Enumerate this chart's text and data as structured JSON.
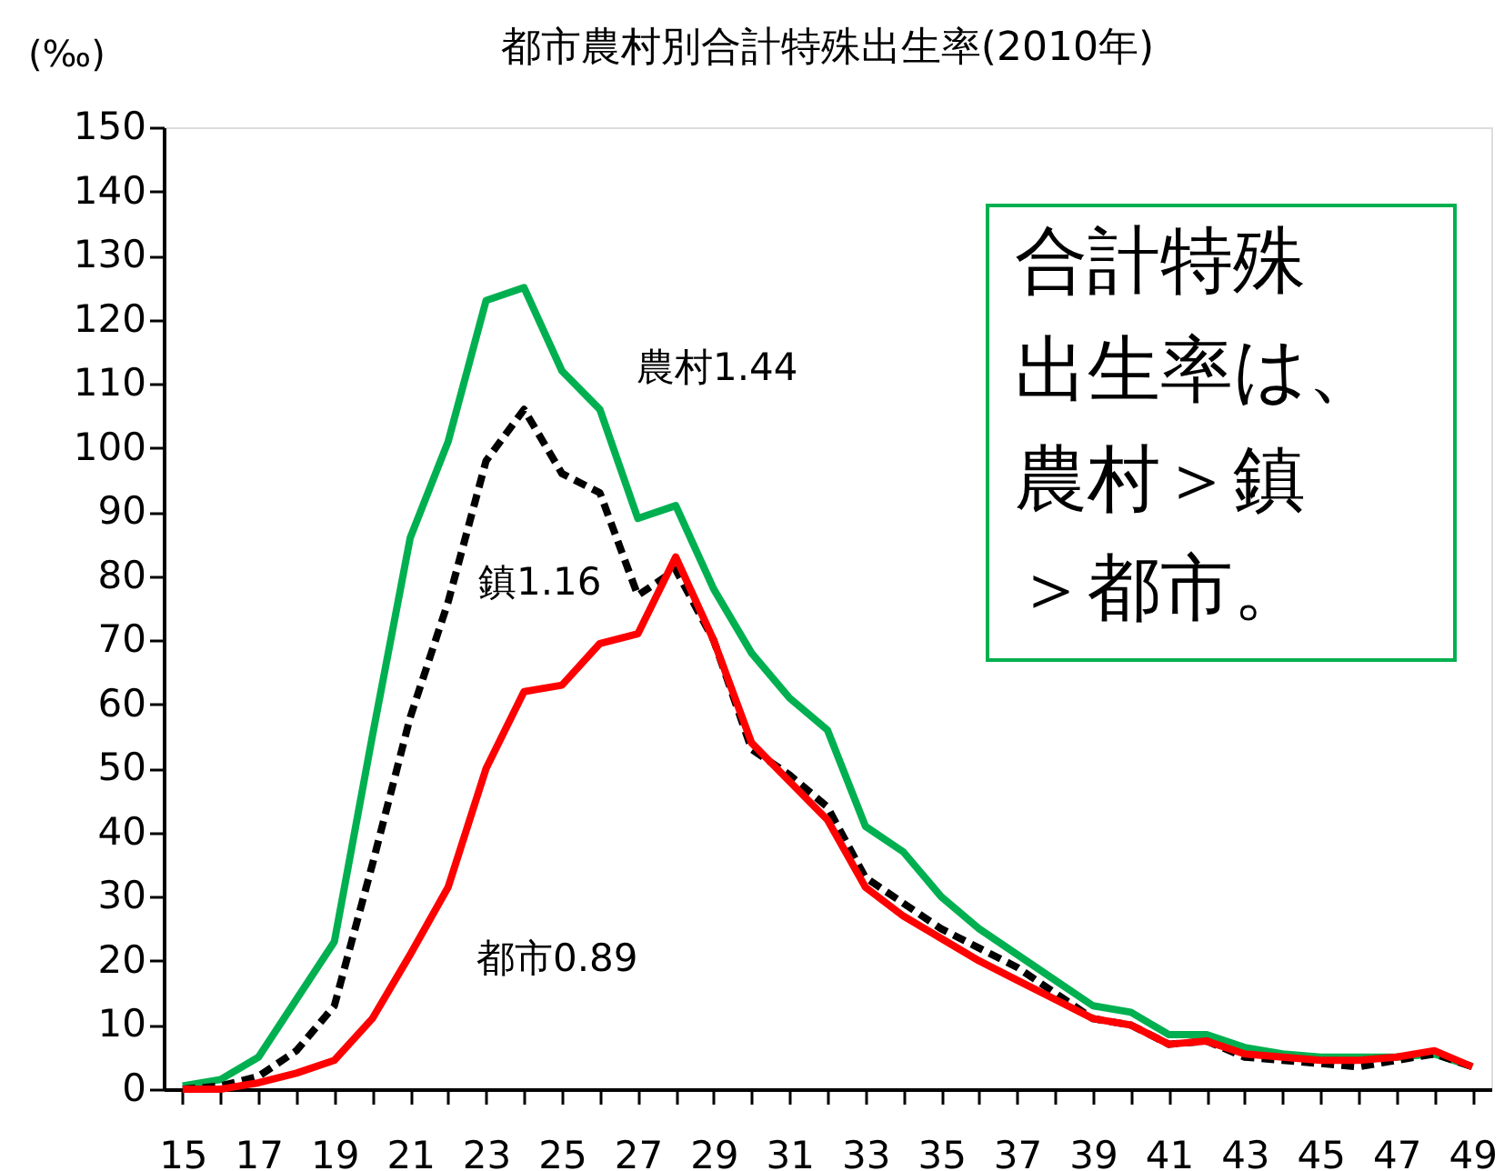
{
  "chart_data": {
    "type": "line",
    "title": "都市農村別合計特殊出生率(2010年)",
    "ylabel": "(‰)",
    "x": [
      15,
      16,
      17,
      18,
      19,
      20,
      21,
      22,
      23,
      24,
      25,
      26,
      27,
      28,
      29,
      30,
      31,
      32,
      33,
      34,
      35,
      36,
      37,
      38,
      39,
      40,
      41,
      42,
      43,
      44,
      45,
      46,
      47,
      48,
      49
    ],
    "series": [
      {
        "name": "農村1.44",
        "color": "#00b050",
        "line_style": "solid",
        "values": [
          0.5,
          1.5,
          5,
          14,
          23,
          55,
          86,
          101,
          123,
          125,
          112,
          106,
          89,
          91,
          78,
          68,
          61,
          56,
          41,
          37,
          30,
          25,
          21,
          17,
          13,
          12,
          8.5,
          8.5,
          6.5,
          5.5,
          5,
          5,
          5,
          5.5,
          3.5
        ]
      },
      {
        "name": "鎮1.16",
        "color": "#000000",
        "line_style": "dashed",
        "values": [
          0,
          0.5,
          2,
          6,
          13,
          35,
          58,
          76,
          98,
          106,
          96,
          93,
          77,
          81,
          70,
          53,
          49,
          44,
          33,
          29,
          25,
          22,
          19,
          15,
          11,
          10,
          7,
          7.5,
          5,
          4.5,
          4,
          3.5,
          4.5,
          5.5,
          3.5
        ]
      },
      {
        "name": "都市0.89",
        "color": "#ff0000",
        "line_style": "solid",
        "values": [
          0,
          0,
          1,
          2.5,
          4.5,
          11,
          21,
          31.5,
          50,
          62,
          63,
          69.5,
          71,
          83,
          70,
          54,
          48,
          42,
          31.5,
          27,
          23.5,
          20,
          17,
          14,
          11,
          10,
          7,
          7.5,
          5.5,
          5,
          4.5,
          4.5,
          5,
          6,
          3.5
        ]
      }
    ],
    "xlim": [
      14.5,
      49.5
    ],
    "xticks": [
      15,
      {
        "value": 16,
        "label": null
      },
      17,
      {
        "value": 18,
        "label": null
      },
      19,
      {
        "value": 20,
        "label": null
      },
      21,
      {
        "value": 22,
        "label": null
      },
      23,
      {
        "value": 24,
        "label": null
      },
      25,
      {
        "value": 26,
        "label": null
      },
      27,
      {
        "value": 28,
        "label": null
      },
      29,
      {
        "value": 30,
        "label": null
      },
      31,
      {
        "value": 32,
        "label": null
      },
      33,
      {
        "value": 34,
        "label": null
      },
      35,
      {
        "value": 36,
        "label": null
      },
      37,
      {
        "value": 38,
        "label": null
      },
      39,
      {
        "value": 40,
        "label": null
      },
      41,
      {
        "value": 42,
        "label": null
      },
      43,
      {
        "value": 44,
        "label": null
      },
      45,
      {
        "value": 46,
        "label": null
      },
      47,
      {
        "value": 48,
        "label": null
      },
      49
    ],
    "ylim": [
      0,
      150
    ],
    "yticks": [
      0,
      10,
      20,
      30,
      40,
      50,
      60,
      70,
      80,
      90,
      100,
      110,
      120,
      130,
      140,
      150
    ],
    "grid": false,
    "legend": false,
    "marker": "none",
    "annotations": [
      "合計特殊出生率は、農村＞鎮＞都市。"
    ]
  }
}
